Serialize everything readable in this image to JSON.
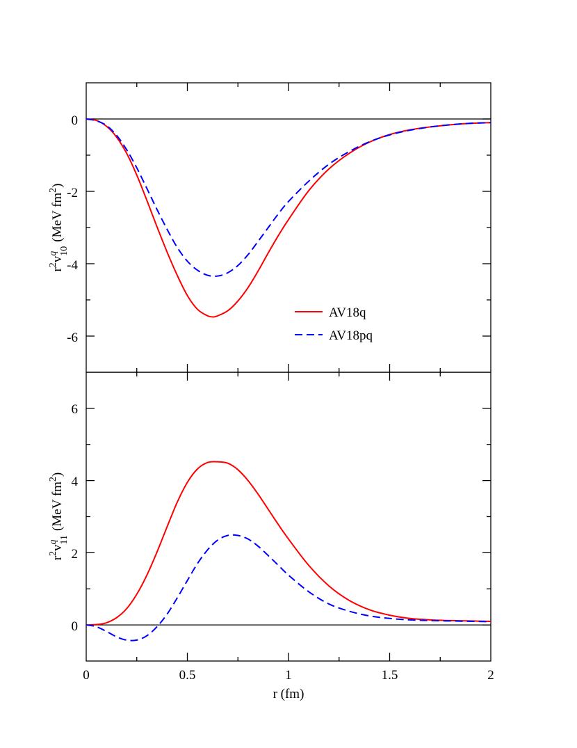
{
  "chart_data": [
    {
      "type": "line",
      "panel": "top",
      "xlim": [
        0,
        2
      ],
      "ylim": [
        -7,
        1
      ],
      "y_ticks": [
        0,
        -2,
        -4,
        -6
      ],
      "y_tick_labels": [
        "0",
        "-2",
        "-4",
        "-6"
      ],
      "ylabel": {
        "base": "r",
        "r_exp": "2",
        "var": "v",
        "var_sup": "q",
        "var_sub": "10",
        "units_open": "(MeV fm",
        "units_exp": "2",
        "units_close": ")"
      },
      "zero_line": true,
      "legend": {
        "position": "lower-right",
        "entries": [
          "AV18q",
          "AV18pq"
        ]
      },
      "series": [
        {
          "name": "AV18q",
          "color": "#ff0000",
          "dash": "solid",
          "x": [
            0,
            0.05,
            0.1,
            0.15,
            0.2,
            0.25,
            0.3,
            0.35,
            0.4,
            0.45,
            0.5,
            0.55,
            0.6,
            0.63,
            0.65,
            0.7,
            0.75,
            0.8,
            0.85,
            0.9,
            0.95,
            1.0,
            1.1,
            1.2,
            1.3,
            1.4,
            1.5,
            1.6,
            1.7,
            1.8,
            1.9,
            2.0
          ],
          "values": [
            0,
            -0.04,
            -0.2,
            -0.5,
            -0.95,
            -1.55,
            -2.25,
            -2.98,
            -3.68,
            -4.32,
            -4.88,
            -5.26,
            -5.44,
            -5.47,
            -5.44,
            -5.3,
            -5.03,
            -4.66,
            -4.2,
            -3.7,
            -3.22,
            -2.78,
            -1.98,
            -1.38,
            -0.95,
            -0.64,
            -0.43,
            -0.3,
            -0.22,
            -0.16,
            -0.12,
            -0.1
          ]
        },
        {
          "name": "AV18pq",
          "color": "#0000ff",
          "dash": "dashed",
          "x": [
            0,
            0.05,
            0.1,
            0.15,
            0.2,
            0.25,
            0.3,
            0.35,
            0.4,
            0.45,
            0.5,
            0.55,
            0.6,
            0.65,
            0.7,
            0.75,
            0.8,
            0.85,
            0.9,
            0.95,
            1.0,
            1.1,
            1.2,
            1.3,
            1.4,
            1.5,
            1.6,
            1.7,
            1.8,
            1.9,
            2.0
          ],
          "values": [
            0,
            -0.05,
            -0.18,
            -0.45,
            -0.85,
            -1.35,
            -1.92,
            -2.5,
            -3.05,
            -3.55,
            -3.93,
            -4.18,
            -4.32,
            -4.34,
            -4.25,
            -4.05,
            -3.75,
            -3.38,
            -3.0,
            -2.62,
            -2.28,
            -1.72,
            -1.25,
            -0.9,
            -0.63,
            -0.44,
            -0.31,
            -0.22,
            -0.16,
            -0.12,
            -0.1
          ]
        }
      ]
    },
    {
      "type": "line",
      "panel": "bottom",
      "xlim": [
        0,
        2
      ],
      "ylim": [
        -1,
        7
      ],
      "x_ticks": [
        0,
        0.5,
        1,
        1.5,
        2
      ],
      "x_tick_labels": [
        "0",
        "0.5",
        "1",
        "1.5",
        "2"
      ],
      "xlabel": "r (fm)",
      "y_ticks": [
        0,
        2,
        4,
        6
      ],
      "y_tick_labels": [
        "0",
        "2",
        "4",
        "6"
      ],
      "ylabel": {
        "base": "r",
        "r_exp": "2",
        "var": "v",
        "var_sup": "q",
        "var_sub": "11",
        "units_open": "(MeV fm",
        "units_exp": "2",
        "units_close": ")"
      },
      "zero_line": true,
      "series": [
        {
          "name": "AV18q",
          "color": "#ff0000",
          "dash": "solid",
          "x": [
            0,
            0.05,
            0.1,
            0.15,
            0.2,
            0.25,
            0.3,
            0.35,
            0.4,
            0.45,
            0.5,
            0.55,
            0.6,
            0.65,
            0.7,
            0.75,
            0.8,
            0.85,
            0.9,
            0.95,
            1.0,
            1.1,
            1.2,
            1.3,
            1.4,
            1.5,
            1.6,
            1.7,
            1.8,
            1.9,
            2.0
          ],
          "values": [
            0,
            0.01,
            0.06,
            0.2,
            0.45,
            0.85,
            1.38,
            2.02,
            2.72,
            3.4,
            3.95,
            4.32,
            4.5,
            4.52,
            4.48,
            4.3,
            4.0,
            3.62,
            3.2,
            2.78,
            2.38,
            1.65,
            1.08,
            0.68,
            0.42,
            0.27,
            0.18,
            0.14,
            0.12,
            0.11,
            0.1
          ]
        },
        {
          "name": "AV18pq",
          "color": "#0000ff",
          "dash": "dashed",
          "x": [
            0,
            0.05,
            0.1,
            0.15,
            0.2,
            0.25,
            0.3,
            0.35,
            0.4,
            0.45,
            0.5,
            0.55,
            0.6,
            0.65,
            0.7,
            0.75,
            0.8,
            0.85,
            0.9,
            0.95,
            1.0,
            1.1,
            1.2,
            1.3,
            1.4,
            1.5,
            1.6,
            1.7,
            1.8,
            1.9,
            2.0
          ],
          "values": [
            0,
            -0.05,
            -0.18,
            -0.33,
            -0.42,
            -0.42,
            -0.3,
            -0.05,
            0.3,
            0.75,
            1.23,
            1.7,
            2.08,
            2.35,
            2.48,
            2.48,
            2.38,
            2.18,
            1.92,
            1.65,
            1.38,
            0.92,
            0.58,
            0.38,
            0.25,
            0.18,
            0.14,
            0.12,
            0.11,
            0.1,
            0.09
          ]
        }
      ]
    }
  ]
}
